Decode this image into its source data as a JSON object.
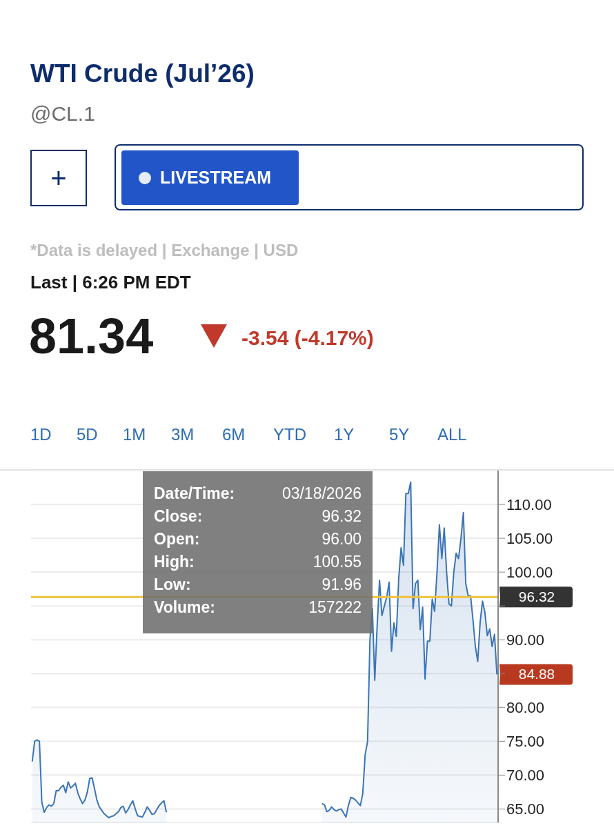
{
  "chart_data": {
    "type": "area",
    "title": "WTI Crude (Jul’26)",
    "subtitle": "@CL.1",
    "annotations": [
      "+",
      "LIVESTREAM",
      "*Data is delayed | Exchange | USD",
      "Last | 6:26 PM EDT",
      "81.34",
      "-3.54 (-4.17%)",
      "1D",
      "5D",
      "1M",
      "3M",
      "6M",
      "YTD",
      "1Y",
      "5Y",
      "ALL",
      "Date/Time: 03/18/2026",
      "Close: 96.32",
      "Open: 96.00",
      "High: 100.55",
      "Low: 91.96",
      "Volume: 157222",
      "84.88"
    ],
    "categories": [
      null,
      null,
      null,
      null,
      null,
      null,
      null,
      null,
      null,
      null,
      null,
      null,
      null,
      null,
      null,
      null,
      null,
      null,
      null,
      null,
      null,
      null,
      null,
      null,
      null,
      null,
      null,
      null,
      null,
      null,
      null,
      null,
      null,
      null,
      null,
      null,
      null,
      null,
      null,
      null,
      null,
      null,
      null,
      null,
      null,
      null,
      null,
      null,
      null,
      null,
      null,
      null,
      null,
      null,
      null,
      null,
      null,
      null,
      null,
      null,
      null,
      null,
      null,
      null,
      null,
      null,
      null,
      null,
      null,
      null,
      null,
      null,
      null,
      null,
      null,
      null,
      null,
      null,
      null,
      null,
      null,
      null,
      null,
      null,
      null,
      null,
      null,
      null,
      null,
      null,
      null,
      null,
      null,
      null,
      null,
      null,
      null,
      null,
      null,
      null,
      null,
      null,
      null,
      null,
      null,
      null,
      null,
      null,
      null,
      null,
      null,
      null,
      null,
      null,
      null,
      null,
      null,
      null,
      null,
      null,
      null,
      null,
      null,
      null,
      null,
      null,
      null,
      null,
      null,
      null,
      null,
      null,
      null,
      null,
      null,
      null,
      null,
      null,
      null,
      null,
      null,
      null,
      null,
      null,
      null,
      null,
      null,
      null,
      null,
      null,
      null,
      null,
      null,
      null,
      null,
      null,
      null,
      null,
      null,
      null,
      null,
      null,
      null,
      null,
      null,
      null,
      null,
      null,
      null,
      null,
      null,
      null,
      null,
      null,
      null,
      null,
      null,
      null,
      null,
      null,
      null,
      null,
      null,
      null,
      null,
      null,
      null,
      null,
      null,
      null,
      null,
      null,
      null,
      null,
      null
    ],
    "series": [
      {
        "color": "#3b74b6",
        "values": [
          72,
          75,
          75.2,
          75,
          66,
          64.5,
          65.2,
          65.6,
          65.4,
          65.8,
          67.7,
          67.7,
          68.2,
          68.5,
          67.4,
          69,
          68.1,
          68.4,
          68.8,
          67.4,
          66.5,
          65.8,
          66.3,
          67.5,
          69.5,
          69.6,
          68,
          66.3,
          65.3,
          64.8,
          64.3,
          64,
          63.7,
          63.9,
          64,
          64.3,
          64.6,
          65.2,
          65.4,
          64.4,
          64.9,
          65.6,
          66.2,
          65,
          64,
          63.9,
          63.8,
          64.5,
          65.3,
          64.8,
          64.2,
          64.3,
          64.9,
          65.5,
          65.9,
          66.2,
          64.5,
          null,
          null,
          null,
          null,
          null,
          null,
          null,
          null,
          null,
          null,
          null,
          null,
          null,
          null,
          null,
          null,
          null,
          null,
          null,
          null,
          null,
          null,
          null,
          null,
          null,
          null,
          null,
          null,
          null,
          null,
          null,
          null,
          null,
          null,
          null,
          null,
          null,
          null,
          null,
          null,
          null,
          null,
          null,
          null,
          null,
          null,
          null,
          null,
          null,
          null,
          null,
          null,
          null,
          null,
          null,
          null,
          null,
          null,
          null,
          null,
          null,
          null,
          null,
          null,
          65.8,
          65.6,
          64.6,
          64.8,
          65.3,
          64.9,
          64.7,
          64.9,
          65,
          64.4,
          63.8,
          65.5,
          66.7,
          66.6,
          66.3,
          65.9,
          65.5,
          67.3,
          73,
          75,
          90,
          94.6,
          84,
          92,
          98.8,
          93.6,
          95,
          96.32,
          98.5,
          88.3,
          92.5,
          90.5,
          99,
          103.6,
          101,
          111.6,
          111.6,
          113.3,
          94.6,
          98.3,
          98.8,
          91.5,
          94.8,
          84.2,
          89.8,
          89.8,
          96,
          94.2,
          100,
          107,
          102,
          106.5,
          100,
          95.3,
          95,
          100,
          102.8,
          102,
          105,
          108.8,
          98.3,
          96.5,
          96.5,
          93,
          89,
          86.8,
          92.6,
          95.7,
          94,
          90.6,
          91.6,
          89,
          90.8,
          84.88
        ]
      }
    ],
    "ylim": [
      63,
      115
    ],
    "yticks": [
      {
        "value": 65,
        "label": "65.00"
      },
      {
        "value": 70,
        "label": "70.00"
      },
      {
        "value": 75,
        "label": "75.00"
      },
      {
        "value": 80,
        "label": "80.00"
      },
      {
        "value": 85,
        "label": null
      },
      {
        "value": 90,
        "label": "90.00"
      },
      {
        "value": 95,
        "label": null
      },
      {
        "value": 100,
        "label": "100.00"
      },
      {
        "value": 105,
        "label": "105.00"
      },
      {
        "value": 110,
        "label": "110.00"
      }
    ],
    "grid": "y",
    "ref_lines": [
      {
        "axis": "y",
        "value": 96.32,
        "label": "96.32",
        "color": "#f0c23b"
      }
    ]
  }
}
